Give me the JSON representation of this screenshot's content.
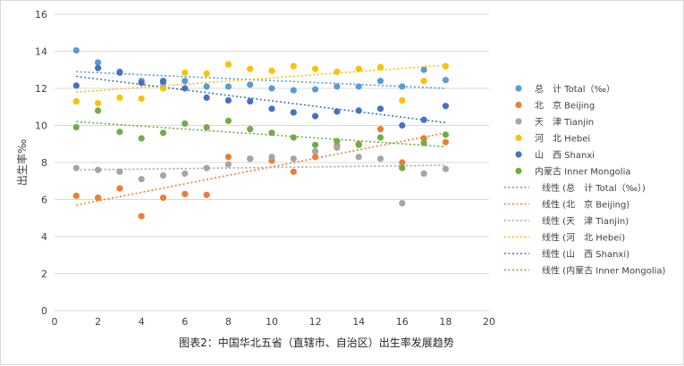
{
  "chart_data": {
    "type": "scatter",
    "title": "",
    "caption": "图表2：中国华北五省（直辖市、自治区）出生率发展趋势",
    "xlabel": "",
    "ylabel": "出生率‰",
    "xlim": [
      0,
      20
    ],
    "ylim": [
      0,
      16
    ],
    "xticks": [
      0,
      2,
      4,
      6,
      8,
      10,
      12,
      14,
      16,
      18,
      20
    ],
    "yticks": [
      0,
      2,
      4,
      6,
      8,
      10,
      12,
      14,
      16
    ],
    "grid": true,
    "legend_position": "right",
    "series": [
      {
        "name": "总　计 Total（‰）",
        "color": "#5b9bd5",
        "x": [
          1,
          2,
          3,
          4,
          5,
          6,
          7,
          8,
          9,
          10,
          11,
          12,
          13,
          14,
          15,
          16,
          17,
          18
        ],
        "values": [
          14.05,
          13.4,
          12.9,
          12.4,
          12.3,
          12.4,
          12.1,
          12.1,
          12.2,
          12.0,
          11.9,
          11.95,
          12.1,
          12.1,
          12.4,
          12.1,
          13.0,
          12.45
        ],
        "trend": [
          12.9,
          12.0
        ]
      },
      {
        "name": "北　京 Beijing",
        "color": "#ed7d31",
        "x": [
          1,
          2,
          3,
          4,
          5,
          6,
          7,
          8,
          9,
          10,
          11,
          12,
          13,
          14,
          15,
          16,
          17,
          18
        ],
        "values": [
          6.2,
          6.1,
          6.6,
          5.1,
          6.1,
          6.3,
          6.25,
          8.3,
          8.2,
          8.1,
          7.5,
          8.3,
          8.9,
          9.0,
          9.8,
          8.0,
          9.3,
          9.1
        ],
        "trend": [
          5.7,
          9.6
        ]
      },
      {
        "name": "天　津 Tianjin",
        "color": "#a5a5a5",
        "x": [
          1,
          2,
          3,
          4,
          5,
          6,
          7,
          8,
          9,
          10,
          11,
          12,
          13,
          14,
          15,
          16,
          17,
          18
        ],
        "values": [
          7.7,
          7.6,
          7.5,
          7.1,
          7.3,
          7.4,
          7.7,
          7.9,
          8.2,
          8.3,
          8.2,
          8.6,
          8.8,
          8.3,
          8.2,
          5.8,
          7.4,
          7.65
        ],
        "trend": [
          7.6,
          7.85
        ]
      },
      {
        "name": "河　北 Hebei",
        "color": "#ffc000",
        "x": [
          1,
          2,
          3,
          4,
          5,
          6,
          7,
          8,
          9,
          10,
          11,
          12,
          13,
          14,
          15,
          16,
          17,
          18
        ],
        "values": [
          11.3,
          11.2,
          11.5,
          11.45,
          12.0,
          12.85,
          12.8,
          13.3,
          13.05,
          12.95,
          13.2,
          13.05,
          12.9,
          13.05,
          13.15,
          11.35,
          12.4,
          13.2
        ],
        "trend": [
          11.8,
          13.25
        ]
      },
      {
        "name": "山　西 Shanxi",
        "color": "#4472c4",
        "x": [
          1,
          2,
          3,
          4,
          5,
          6,
          7,
          8,
          9,
          10,
          11,
          12,
          13,
          14,
          15,
          16,
          17,
          18
        ],
        "values": [
          12.15,
          13.1,
          12.85,
          12.3,
          12.4,
          12.0,
          11.5,
          11.35,
          11.3,
          10.9,
          10.7,
          10.5,
          10.75,
          10.8,
          10.9,
          10.0,
          10.3,
          11.05
        ],
        "trend": [
          12.65,
          10.15
        ]
      },
      {
        "name": "内蒙古 Inner Mongolia",
        "color": "#70ad47",
        "x": [
          1,
          2,
          3,
          4,
          5,
          6,
          7,
          8,
          9,
          10,
          11,
          12,
          13,
          14,
          15,
          16,
          17,
          18
        ],
        "values": [
          9.9,
          10.8,
          9.65,
          9.3,
          9.6,
          10.1,
          9.9,
          10.25,
          9.8,
          9.6,
          9.35,
          8.95,
          9.15,
          8.95,
          9.35,
          7.7,
          9.05,
          9.5
        ],
        "trend": [
          10.2,
          8.85
        ]
      }
    ],
    "trend_legend": [
      "线性 (总　计 Total（‰）)",
      "线性 (北　京 Beijing)",
      "线性 (天　津 Tianjin)",
      "线性 (河　北 Hebei)",
      "线性 (山　西 Shanxi)",
      "线性 (内蒙古 Inner Mongolia)"
    ]
  }
}
